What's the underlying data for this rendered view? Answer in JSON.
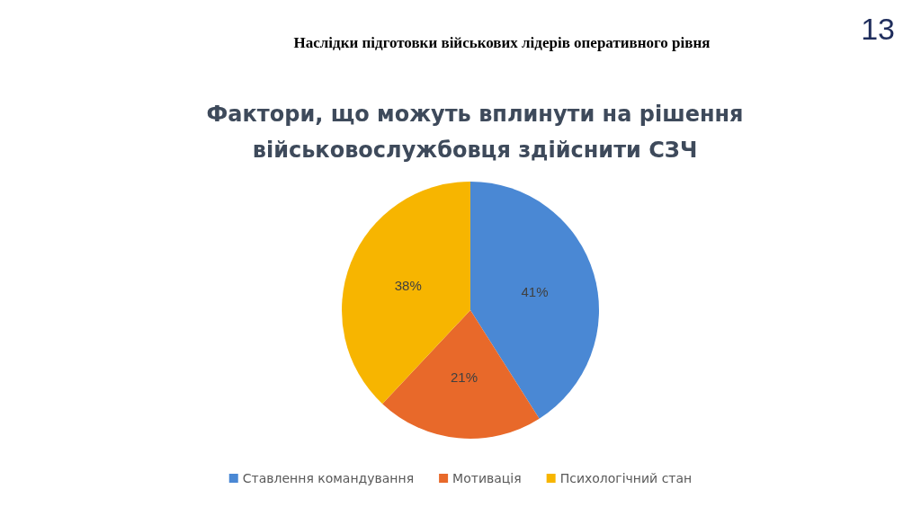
{
  "chart_data": {
    "type": "pie",
    "title": "Наслідки підготовки військових лідерів оперативного рівня",
    "subtitle": "Фактори, що можуть вплинути на рішення\nвійськовослужбовця здійснити СЗЧ",
    "annotations": [
      "13"
    ],
    "categories": [
      "Ставлення командування",
      "Мотивація",
      "Психологічний стан"
    ],
    "values": [
      41,
      21,
      38
    ],
    "colors": [
      "#4a88d4",
      "#e8692a",
      "#f7b500"
    ],
    "value_labels": [
      "41%",
      "21%",
      "38%"
    ],
    "legend": "bottom"
  }
}
